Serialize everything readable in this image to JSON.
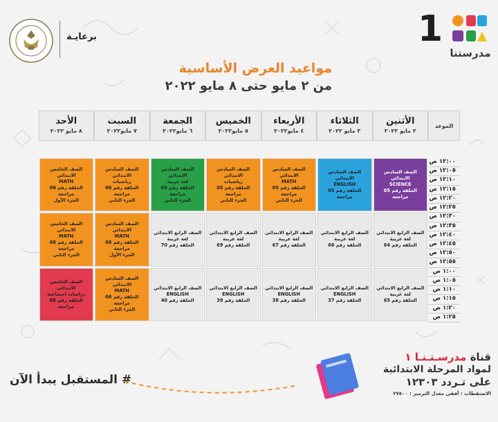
{
  "header": {
    "logo_number": "1",
    "logo_word": "مدرستنا",
    "sponsor_label": "برعايـة",
    "title_main": "مواعيد العرض الأساسية",
    "title_sub": "من ٢ مايو حتى ٨ مايو ٢٠٢٢"
  },
  "table": {
    "time_header": "الموعد",
    "days": [
      {
        "name": "الأثنين",
        "date": "٢ مايو ٢٠٢٢"
      },
      {
        "name": "الثلاثاء",
        "date": "٣ مايو ٢٠٢٢"
      },
      {
        "name": "الأربعاء",
        "date": "٤ مايو٢٠٢٢"
      },
      {
        "name": "الخميس",
        "date": "٥ مايو٢٠٢٢"
      },
      {
        "name": "الجمعة",
        "date": "٦ مايو٢٠٢٢"
      },
      {
        "name": "السبت",
        "date": "٧ مايو٢٠٢٢"
      },
      {
        "name": "الأحد",
        "date": "٨ مايو ٢٠٢٢"
      }
    ],
    "times": [
      "١٢:٠٠ ص",
      "١٢:٠٥ ص",
      "١٢:١٠ ص",
      "١٢:١٥ ص",
      "١٢:٢٠ ص",
      "١٢:٢٥ ص",
      "١٢:٣٠ ص",
      "١٢:٣٥ ص",
      "١٢:٤٠ ص",
      "١٢:٤٥ ص",
      "١٢:٥٠ ص",
      "١٢:٥٥ ص",
      "١:٠٠ ص",
      "١:٠٥ ص",
      "١:١٠ ص",
      "١:١٥ ص",
      "١:٢٠ ص",
      "١:٢٥ ص"
    ],
    "slots": [
      {
        "day": 0,
        "block": 0,
        "color": "#7a3f9d",
        "dark": true,
        "lines": [
          "الصف السادس الابتدائي",
          "SCIENCE",
          "الحلقة رقم 05 مراجعة"
        ]
      },
      {
        "day": 1,
        "block": 0,
        "color": "#2aa3dd",
        "dark": false,
        "lines": [
          "الصف السادس الابتدائي",
          "ENGLISH",
          "الحلقة رقم 05 مراجعة"
        ]
      },
      {
        "day": 2,
        "block": 0,
        "color": "#f29320",
        "dark": false,
        "lines": [
          "الصف السادس الابتدائي",
          "MATH",
          "الحلقة رقم 05 مراجعة",
          "الجزء الثاني"
        ]
      },
      {
        "day": 3,
        "block": 0,
        "color": "#f29320",
        "dark": false,
        "lines": [
          "الصف السادس الابتدائي",
          "رياضيات",
          "الحلقة رقم 05 مراجعة",
          "الجزء الثاني"
        ]
      },
      {
        "day": 4,
        "block": 0,
        "color": "#27a048",
        "dark": false,
        "lines": [
          "الصف السادس الابتدائي",
          "لغة عربية",
          "الحلقة رقم 05 مراجعة",
          "الجزء الثاني"
        ]
      },
      {
        "day": 5,
        "block": 0,
        "color": "#f29320",
        "dark": false,
        "lines": [
          "الصف السادس الابتدائي",
          "رياضيات",
          "الحلقة رقم 06 مراجعة",
          "الجزء الثاني"
        ]
      },
      {
        "day": 6,
        "block": 0,
        "color": "#f29320",
        "dark": false,
        "lines": [
          "الصف الخامس الابتدائي",
          "MATH",
          "الحلقة رقم 06 مراجعة",
          "الجزء الأول"
        ]
      },
      {
        "day": 0,
        "block": 1,
        "color": "#e9e9e9",
        "dark": false,
        "lines": [
          "الصف الرابع الابتدائي",
          "لغة عربية",
          "الحلقة رقم 64"
        ]
      },
      {
        "day": 1,
        "block": 1,
        "color": "#e9e9e9",
        "dark": false,
        "lines": [
          "الصف الرابع الابتدائي",
          "لغة عربية",
          "الحلقة رقم 66"
        ]
      },
      {
        "day": 2,
        "block": 1,
        "color": "#e9e9e9",
        "dark": false,
        "lines": [
          "الصف الرابع الابتدائي",
          "لغة عربية",
          "الحلقة رقم 67"
        ]
      },
      {
        "day": 3,
        "block": 1,
        "color": "#e9e9e9",
        "dark": false,
        "lines": [
          "الصف الرابع الابتدائي",
          "لغة عربية",
          "الحلقة رقم 69"
        ]
      },
      {
        "day": 4,
        "block": 1,
        "color": "#e9e9e9",
        "dark": false,
        "lines": [
          "الصف الرابع الابتدائي",
          "لغة عربية",
          "الحلقة رقم 70"
        ]
      },
      {
        "day": 5,
        "block": 1,
        "color": "#f29320",
        "dark": false,
        "lines": [
          "الصف السادس الابتدائي",
          "MATH",
          "الحلقة رقم 06 مراجعة",
          "الجزء الأول"
        ]
      },
      {
        "day": 6,
        "block": 1,
        "color": "#f29320",
        "dark": false,
        "lines": [
          "الصف الخامس الابتدائي",
          "MATH",
          "الحلقة رقم 06 مراجعة",
          "الجزء الثاني"
        ]
      },
      {
        "day": 0,
        "block": 2,
        "color": "#e9e9e9",
        "dark": false,
        "lines": [
          "الصف الرابع الابتدائي",
          "لغة عربية",
          "الحلقة رقم 65"
        ]
      },
      {
        "day": 1,
        "block": 2,
        "color": "#e9e9e9",
        "dark": false,
        "lines": [
          "الصف الرابع الابتدائي",
          "ENGLISH",
          "الحلقة رقم 37"
        ]
      },
      {
        "day": 2,
        "block": 2,
        "color": "#e9e9e9",
        "dark": false,
        "lines": [
          "الصف الرابع الابتدائي",
          "ENGLISH",
          "الحلقة رقم 38"
        ]
      },
      {
        "day": 3,
        "block": 2,
        "color": "#e9e9e9",
        "dark": false,
        "lines": [
          "الصف الرابع الابتدائي",
          "ENGLISH",
          "الحلقة رقم 39"
        ]
      },
      {
        "day": 4,
        "block": 2,
        "color": "#e9e9e9",
        "dark": false,
        "lines": [
          "الصف الرابع الابتدائي",
          "ENGLISH",
          "الحلقة رقم 40"
        ]
      },
      {
        "day": 5,
        "block": 2,
        "color": "#f29320",
        "dark": false,
        "lines": [
          "الصف السادس الابتدائي",
          "MATH",
          "الحلقة رقم 06 مراجعة",
          "الجزء الثاني"
        ]
      },
      {
        "day": 6,
        "block": 2,
        "color": "#e23a4e",
        "dark": false,
        "lines": [
          "الصف الخامس الابتدائي",
          "دراسات اجتماعية",
          "الحلقة رقم 06 مراجعة"
        ]
      }
    ]
  },
  "footer": {
    "hashtag": "# المستقبل يبدأ الآن",
    "channel_prefix": "قناة",
    "channel_name": "مدرسـتـنـا ١",
    "channel_line2": "لمواد المرحلة الابتدائية",
    "channel_line3": "على تـردد ١٢٣٠٣",
    "channel_line4": "الاستقطاب : أفقي معدل الترميز : ٢٧٥٠٠"
  },
  "colors": {
    "accent_orange": "#e8862a",
    "purple": "#7a3f9d",
    "blue": "#2aa3dd",
    "orange": "#f29320",
    "green": "#27a048",
    "red": "#e23a4e",
    "gray_cell": "#e9e9e9"
  }
}
